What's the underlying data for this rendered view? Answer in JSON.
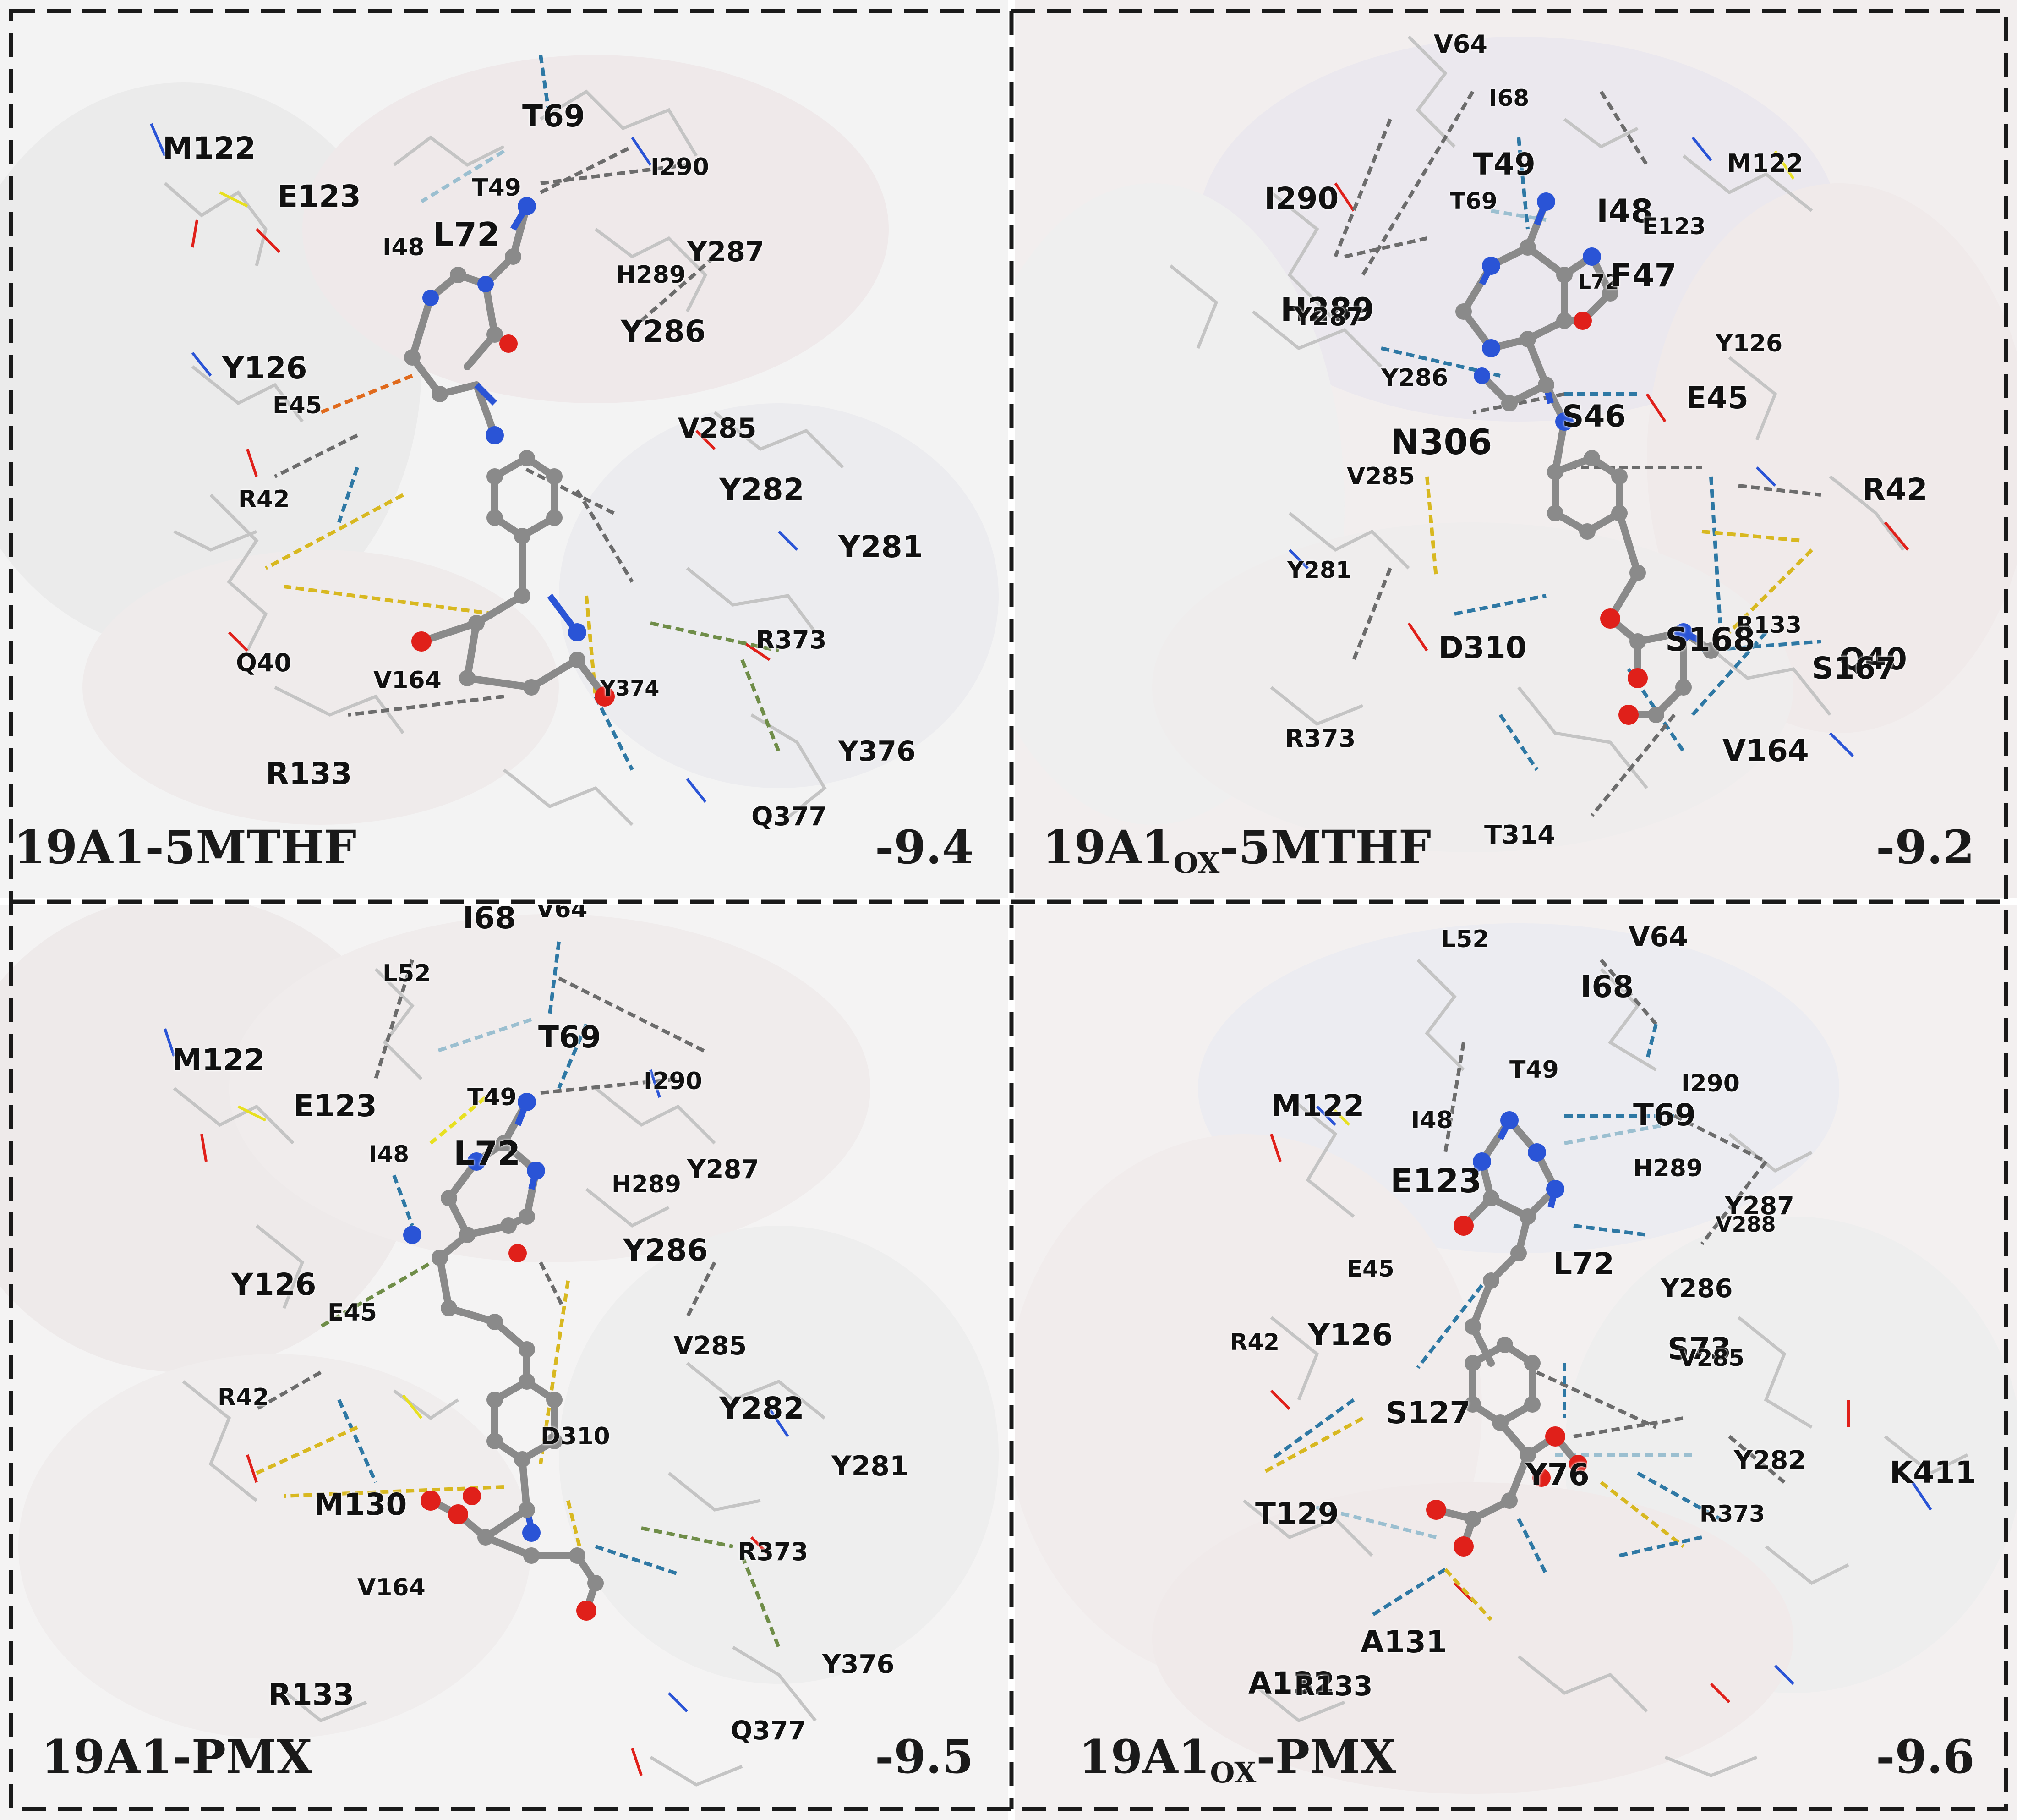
{
  "colors": {
    "ligand_carbon": "#8a8a8a",
    "nitrogen": "#2a54d6",
    "oxygen": "#e0201a",
    "sulfur": "#e8e020",
    "hbond_blue": "#2e78a4",
    "hbond_lightblue": "#9bbfd0",
    "hydrophobic_gray": "#6c6c6c",
    "salt_bridge_yellow": "#d8b820",
    "pi_green": "#6f8d48",
    "pi_orange": "#e06a1c",
    "protein_lines": "#bdbdbd",
    "surface": "#ececec",
    "border_dash": "#1a1a1a"
  },
  "panels": [
    {
      "id": "tl",
      "complex": "19A1-5MTHF",
      "score": "-9.4",
      "residues": [
        "M122",
        "E123",
        "T69",
        "T49",
        "I290",
        "I48",
        "L72",
        "Y287",
        "H289",
        "Y286",
        "Y126",
        "E45",
        "V285",
        "R42",
        "Y282",
        "Y281",
        "Q40",
        "V164",
        "R373",
        "R133",
        "Y376",
        "Q377",
        "Y374"
      ]
    },
    {
      "id": "tr",
      "complex_main": "19A1",
      "complex_sub": "OX",
      "complex_tail": "-5MTHF",
      "score": "-9.2",
      "residues": [
        "V64",
        "I68",
        "T49",
        "I290",
        "T69",
        "M122",
        "I48",
        "E123",
        "L72",
        "F47",
        "H289",
        "Y287",
        "Y126",
        "Y286",
        "S46",
        "E45",
        "N306",
        "V285",
        "R42",
        "Y281",
        "R133",
        "D310",
        "S168",
        "Q40",
        "S167",
        "R373",
        "V164",
        "T314"
      ]
    },
    {
      "id": "bl",
      "complex": "19A1-PMX",
      "score": "-9.5",
      "residues": [
        "I68",
        "V64",
        "L52",
        "T69",
        "M122",
        "I290",
        "E123",
        "T49",
        "L72",
        "I48",
        "H289",
        "Y287",
        "Y286",
        "Y126",
        "E45",
        "V285",
        "R42",
        "Y282",
        "D310",
        "Y281",
        "M130",
        "R373",
        "V164",
        "Y376",
        "R133",
        "Q377"
      ]
    },
    {
      "id": "br",
      "complex_main": "19A1",
      "complex_sub": "OX",
      "complex_tail": "-PMX",
      "score": "-9.6",
      "residues": [
        "L52",
        "V64",
        "I68",
        "T49",
        "I290",
        "M122",
        "I48",
        "T69",
        "H289",
        "E123",
        "Y287",
        "V288",
        "E45",
        "L72",
        "Y286",
        "R42",
        "Y126",
        "S73",
        "V285",
        "S127",
        "Y76",
        "Y282",
        "K411",
        "T129",
        "R373",
        "A131",
        "A132",
        "R133"
      ]
    }
  ]
}
